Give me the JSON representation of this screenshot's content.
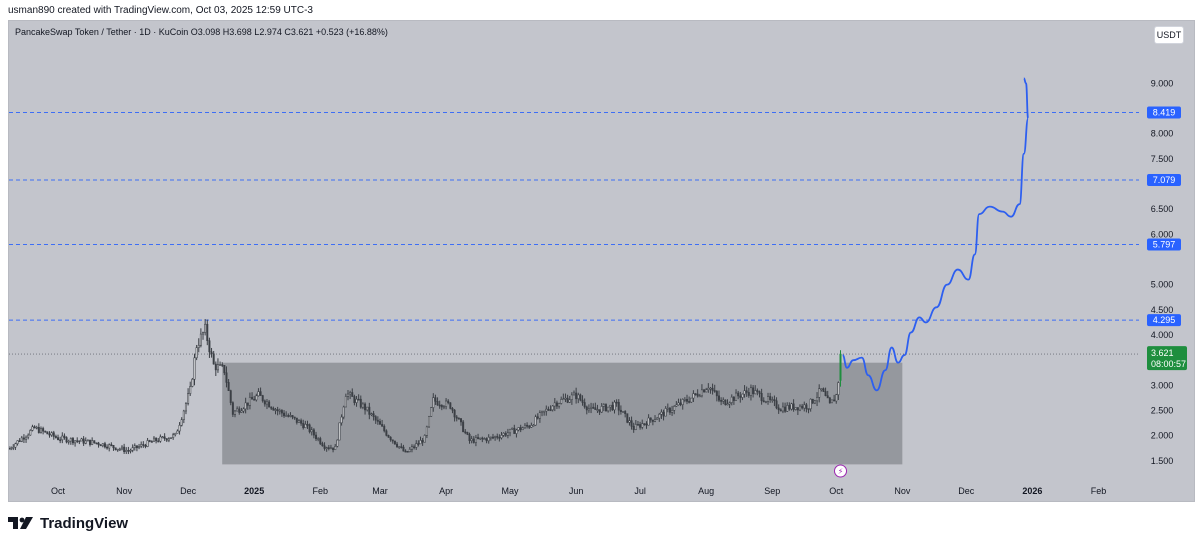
{
  "header": {
    "caption": "usman890 created with TradingView.com, Oct 03, 2025 12:59 UTC-3"
  },
  "legend": {
    "text": "PancakeSwap Token / Tether · 1D · KuCoin  O3.098  H3.698  L2.974  C3.621  +0.523 (+16.88%)"
  },
  "currency_button": "USDT",
  "footer": {
    "brand": "TradingView"
  },
  "colors": {
    "background": "#c3c5cc",
    "candle": "#3b3f45",
    "range_box": "#8d8f95",
    "forecast": "#2d5ff0",
    "level_line": "#3d6ef5",
    "level_label": "#2962ff",
    "price_label": "#1e8e3e"
  },
  "chart_data": {
    "type": "candlestick",
    "symbol": "PancakeSwap Token / Tether",
    "interval": "1D",
    "exchange": "KuCoin",
    "last_bar": {
      "open": 3.098,
      "high": 3.698,
      "low": 2.974,
      "close": 3.621,
      "change": 0.523,
      "change_pct": 16.88
    },
    "y_axis": {
      "ylim": [
        1.1,
        9.8
      ],
      "ticks": [
        "9.000",
        "8.000",
        "7.500",
        "6.500",
        "6.000",
        "5.000",
        "4.500",
        "4.000",
        "3.000",
        "2.500",
        "2.000",
        "1.500"
      ]
    },
    "x_axis": {
      "start": "2024-09-08",
      "end": "2026-02-20",
      "labels": [
        "Oct",
        "Nov",
        "Dec",
        "2025",
        "Feb",
        "Mar",
        "Apr",
        "May",
        "Jun",
        "Jul",
        "Aug",
        "Sep",
        "Oct",
        "Nov",
        "Dec",
        "2026",
        "Feb"
      ]
    },
    "x_label_dates": [
      "2024-10-01",
      "2024-11-01",
      "2024-12-01",
      "2025-01-01",
      "2025-02-01",
      "2025-03-01",
      "2025-04-01",
      "2025-05-01",
      "2025-06-01",
      "2025-07-01",
      "2025-08-01",
      "2025-09-01",
      "2025-10-01",
      "2025-11-01",
      "2025-12-01",
      "2026-01-01",
      "2026-02-01"
    ],
    "price_anchors": [
      [
        "2024-09-08",
        1.75
      ],
      [
        "2024-09-20",
        2.15
      ],
      [
        "2024-10-01",
        1.95
      ],
      [
        "2024-10-20",
        1.85
      ],
      [
        "2024-11-03",
        1.7
      ],
      [
        "2024-11-15",
        1.9
      ],
      [
        "2024-11-25",
        2.0
      ],
      [
        "2024-12-02",
        2.9
      ],
      [
        "2024-12-05",
        3.8
      ],
      [
        "2024-12-09",
        4.1
      ],
      [
        "2024-12-13",
        3.4
      ],
      [
        "2024-12-18",
        3.3
      ],
      [
        "2024-12-22",
        2.45
      ],
      [
        "2025-01-03",
        2.8
      ],
      [
        "2025-01-12",
        2.5
      ],
      [
        "2025-01-25",
        2.2
      ],
      [
        "2025-02-03",
        1.8
      ],
      [
        "2025-02-08",
        1.75
      ],
      [
        "2025-02-13",
        2.85
      ],
      [
        "2025-02-22",
        2.55
      ],
      [
        "2025-03-05",
        2.0
      ],
      [
        "2025-03-13",
        1.65
      ],
      [
        "2025-03-22",
        1.95
      ],
      [
        "2025-03-26",
        2.7
      ],
      [
        "2025-04-03",
        2.6
      ],
      [
        "2025-04-12",
        1.9
      ],
      [
        "2025-04-22",
        1.95
      ],
      [
        "2025-05-10",
        2.2
      ],
      [
        "2025-05-22",
        2.65
      ],
      [
        "2025-06-01",
        2.8
      ],
      [
        "2025-06-08",
        2.5
      ],
      [
        "2025-06-20",
        2.6
      ],
      [
        "2025-06-28",
        2.15
      ],
      [
        "2025-07-10",
        2.4
      ],
      [
        "2025-07-25",
        2.75
      ],
      [
        "2025-08-02",
        3.0
      ],
      [
        "2025-08-08",
        2.65
      ],
      [
        "2025-08-22",
        2.9
      ],
      [
        "2025-09-05",
        2.55
      ],
      [
        "2025-09-18",
        2.6
      ],
      [
        "2025-09-24",
        2.9
      ],
      [
        "2025-09-28",
        2.6
      ],
      [
        "2025-10-01",
        2.8
      ],
      [
        "2025-10-02",
        3.098
      ],
      [
        "2025-10-03",
        3.621
      ]
    ],
    "range_box": {
      "from": "2024-12-17",
      "to": "2025-11-01",
      "high": 3.45,
      "low": 1.43
    },
    "horizontal_levels": [
      {
        "value": 8.419,
        "label": "8.419"
      },
      {
        "value": 7.079,
        "label": "7.079"
      },
      {
        "value": 5.797,
        "label": "5.797"
      },
      {
        "value": 4.295,
        "label": "4.295"
      }
    ],
    "current_price": {
      "value": 3.621,
      "label": "3.621",
      "countdown": "08:00:57"
    },
    "forecast_path": [
      [
        "2025-10-04",
        3.6
      ],
      [
        "2025-10-06",
        3.35
      ],
      [
        "2025-10-09",
        3.5
      ],
      [
        "2025-10-13",
        3.55
      ],
      [
        "2025-10-16",
        3.2
      ],
      [
        "2025-10-20",
        2.9
      ],
      [
        "2025-10-24",
        3.3
      ],
      [
        "2025-10-27",
        3.75
      ],
      [
        "2025-10-30",
        3.45
      ],
      [
        "2025-11-02",
        3.6
      ],
      [
        "2025-11-05",
        4.05
      ],
      [
        "2025-11-09",
        4.35
      ],
      [
        "2025-11-12",
        4.25
      ],
      [
        "2025-11-17",
        4.55
      ],
      [
        "2025-11-22",
        5.0
      ],
      [
        "2025-11-27",
        5.3
      ],
      [
        "2025-12-02",
        5.1
      ],
      [
        "2025-12-05",
        5.6
      ],
      [
        "2025-12-07",
        6.4
      ],
      [
        "2025-12-12",
        6.55
      ],
      [
        "2025-12-18",
        6.45
      ],
      [
        "2025-12-22",
        6.35
      ],
      [
        "2025-12-26",
        6.6
      ],
      [
        "2025-12-28",
        7.6
      ],
      [
        "2025-12-30",
        8.3
      ],
      [
        "2025-12-29",
        9.0
      ],
      [
        "2025-12-28",
        9.1
      ]
    ],
    "grid": false
  }
}
